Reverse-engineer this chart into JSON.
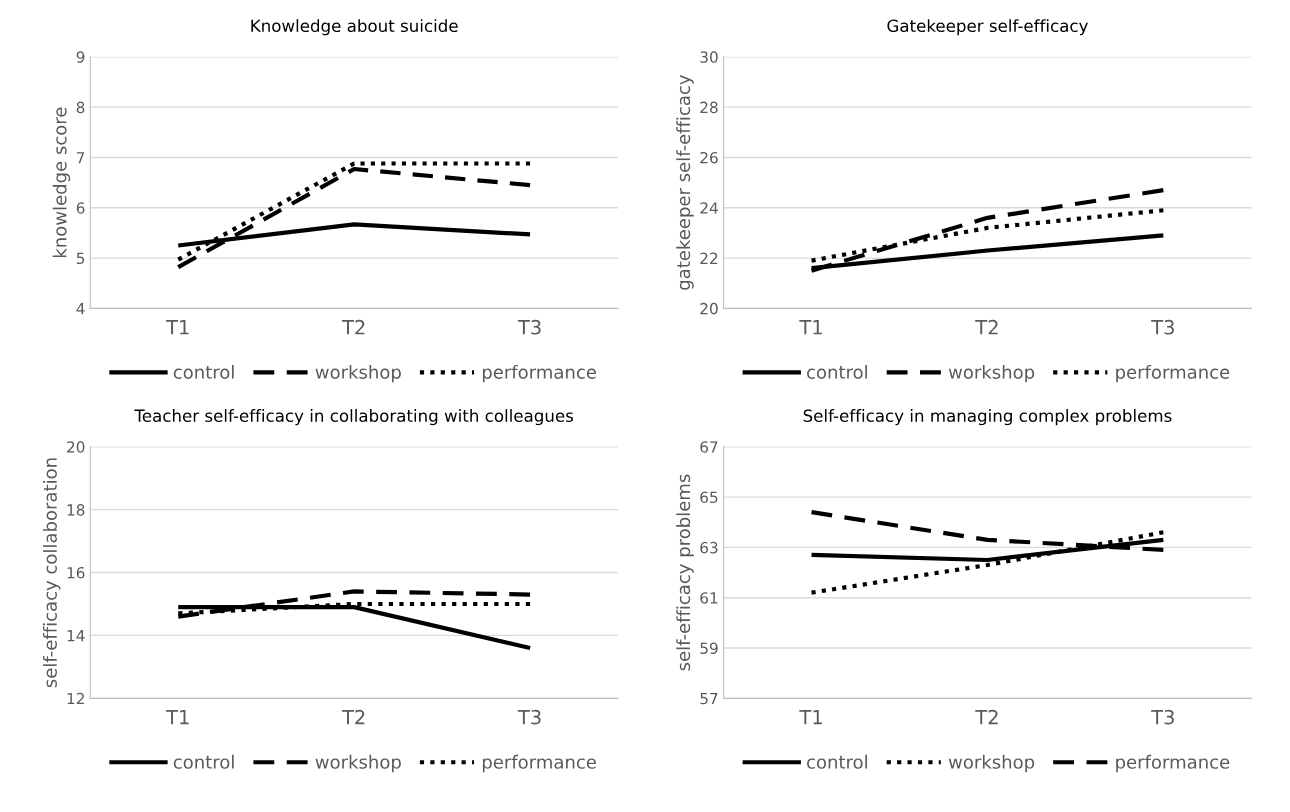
{
  "chart_data": [
    {
      "type": "line",
      "title": "Knowledge about suicide",
      "ylabel": "knowledge score",
      "categories": [
        "T1",
        "T2",
        "T3"
      ],
      "ylim": [
        4,
        9
      ],
      "yticks": [
        4,
        5,
        6,
        7,
        8,
        9
      ],
      "grid": "y",
      "legend": "bottom",
      "marker": "none",
      "series": [
        {
          "name": "control",
          "color": "#000000",
          "line_style": "solid",
          "values": [
            5.25,
            5.67,
            5.47
          ]
        },
        {
          "name": "workshop",
          "color": "#000000",
          "line_style": "dashed",
          "values": [
            4.82,
            6.77,
            6.45
          ]
        },
        {
          "name": "performance",
          "color": "#000000",
          "line_style": "dotted",
          "values": [
            4.97,
            6.88,
            6.88
          ]
        }
      ]
    },
    {
      "type": "line",
      "title": "Gatekeeper self-efficacy",
      "ylabel": "gatekeeper self-efficacy",
      "categories": [
        "T1",
        "T2",
        "T3"
      ],
      "ylim": [
        20,
        30
      ],
      "yticks": [
        20,
        22,
        24,
        26,
        28,
        30
      ],
      "grid": "y",
      "legend": "bottom",
      "marker": "none",
      "series": [
        {
          "name": "control",
          "color": "#000000",
          "line_style": "solid",
          "values": [
            21.6,
            22.3,
            22.9
          ]
        },
        {
          "name": "workshop",
          "color": "#000000",
          "line_style": "dashed",
          "values": [
            21.5,
            23.6,
            24.7
          ]
        },
        {
          "name": "performance",
          "color": "#000000",
          "line_style": "dotted",
          "values": [
            21.9,
            23.2,
            23.9
          ]
        }
      ]
    },
    {
      "type": "line",
      "title": "Teacher self-efficacy in collaborating with colleagues",
      "ylabel": "self-efficacy collaboration",
      "categories": [
        "T1",
        "T2",
        "T3"
      ],
      "ylim": [
        12,
        20
      ],
      "yticks": [
        12,
        14,
        16,
        18,
        20
      ],
      "grid": "y",
      "legend": "bottom",
      "marker": "none",
      "series": [
        {
          "name": "control",
          "color": "#000000",
          "line_style": "solid",
          "values": [
            14.9,
            14.9,
            13.6
          ]
        },
        {
          "name": "workshop",
          "color": "#000000",
          "line_style": "dashed",
          "values": [
            14.6,
            15.4,
            15.3
          ]
        },
        {
          "name": "performance",
          "color": "#000000",
          "line_style": "dotted",
          "values": [
            14.7,
            15.0,
            15.0
          ]
        }
      ]
    },
    {
      "type": "line",
      "title": "Self-efficacy in managing complex problems",
      "ylabel": "self-efficacy problems",
      "categories": [
        "T1",
        "T2",
        "T3"
      ],
      "ylim": [
        57,
        67
      ],
      "yticks": [
        57,
        59,
        61,
        63,
        65,
        67
      ],
      "grid": "y",
      "legend": "bottom",
      "marker": "none",
      "series": [
        {
          "name": "control",
          "color": "#000000",
          "line_style": "solid",
          "values": [
            62.7,
            62.5,
            63.3
          ]
        },
        {
          "name": "workshop",
          "color": "#000000",
          "line_style": "dotted",
          "values": [
            61.2,
            62.3,
            63.6
          ]
        },
        {
          "name": "performance",
          "color": "#000000",
          "line_style": "dashed",
          "values": [
            64.4,
            63.3,
            62.9
          ]
        }
      ]
    }
  ]
}
